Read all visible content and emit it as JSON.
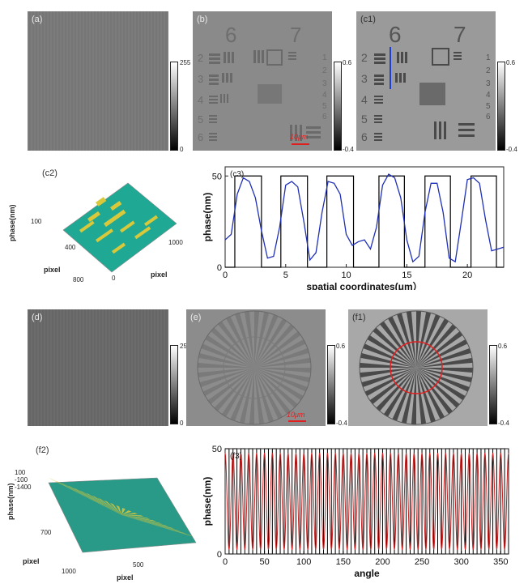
{
  "panels": {
    "a": {
      "label": "(a)"
    },
    "b": {
      "label": "(b)",
      "scalebar": "10μm"
    },
    "c1": {
      "label": "(c1)"
    },
    "c2": {
      "label": "(c2)",
      "zlabel": "phase(nm)",
      "ztick": "100",
      "ylabel": "pixel",
      "xlabel": "pixel",
      "yticks": [
        "400",
        "800"
      ],
      "xticks": [
        "1000",
        "0"
      ]
    },
    "c3": {
      "label": "(c3)"
    },
    "d": {
      "label": "(d)"
    },
    "e": {
      "label": "(e)",
      "scalebar": "10μm"
    },
    "f1": {
      "label": "(f1)"
    },
    "f2": {
      "label": "(f2)",
      "zlabel": "phase(nm)",
      "zticks": [
        "100",
        "-100",
        "-1400"
      ],
      "ytick": "700",
      "ylabel": "pixel",
      "xlabel": "pixel",
      "xticks": [
        "1000",
        "500"
      ]
    },
    "f3": {
      "label": "(f3)"
    }
  },
  "colorbars": {
    "intensity": {
      "max": "255",
      "min": "0"
    },
    "phase": {
      "max": "0.6",
      "min": "-0.4"
    }
  },
  "usaf_numbers": {
    "group6": "6",
    "group7": "7",
    "rows": [
      "2",
      "3",
      "4",
      "5",
      "6"
    ],
    "right": [
      "1",
      "2",
      "3",
      "4",
      "5",
      "6"
    ]
  },
  "colors": {
    "measured_c3": "#1f2fb5",
    "measured_f3": "#cc1f1f",
    "ideal": "#000000",
    "annotation": "#e02020"
  },
  "chart_data": [
    {
      "type": "line",
      "xlabel": "spatial coordinates(μm）",
      "ylabel": "phase(nm)",
      "xlim": [
        0,
        23
      ],
      "ylim": [
        0,
        55
      ],
      "xticks": [
        0,
        5,
        10,
        15,
        20
      ],
      "yticks": [
        0,
        50
      ],
      "grid": false,
      "series": [
        {
          "type": "step",
          "x": [
            0,
            0.8,
            0.8,
            3.0,
            3.0,
            4.6,
            4.6,
            6.8,
            6.8,
            8.4,
            8.4,
            10.6,
            10.6,
            12.7,
            12.7,
            14.8,
            14.8,
            16.5,
            16.5,
            18.6,
            18.6,
            20.3,
            20.3,
            22.4,
            22.4,
            23
          ],
          "y": [
            0,
            0,
            50,
            50,
            0,
            0,
            50,
            50,
            0,
            0,
            50,
            50,
            0,
            0,
            50,
            50,
            0,
            0,
            50,
            50,
            0,
            0,
            50,
            50,
            0,
            0
          ]
        },
        {
          "x": [
            0,
            0.5,
            1.0,
            1.5,
            2.0,
            2.5,
            3.0,
            3.5,
            4.0,
            4.5,
            5.0,
            5.5,
            6.0,
            6.5,
            7.0,
            7.5,
            8.0,
            8.5,
            9.0,
            9.5,
            10.0,
            10.5,
            11.0,
            11.5,
            12.0,
            12.5,
            13.0,
            13.5,
            14.0,
            14.5,
            15.0,
            15.5,
            16.0,
            16.5,
            17.0,
            17.5,
            18.0,
            18.5,
            19.0,
            19.5,
            20.0,
            20.5,
            21.0,
            21.5,
            22.0,
            22.5,
            23.0
          ],
          "y": [
            15,
            18,
            40,
            49,
            47,
            38,
            20,
            5,
            6,
            22,
            45,
            47,
            44,
            25,
            4,
            8,
            30,
            47,
            46,
            40,
            18,
            12,
            14,
            15,
            10,
            22,
            45,
            51,
            49,
            38,
            15,
            3,
            6,
            30,
            46,
            46,
            30,
            5,
            3,
            25,
            48,
            49,
            46,
            26,
            9,
            10,
            11
          ]
        }
      ]
    },
    {
      "type": "line",
      "xlabel": "angle",
      "ylabel": "phase(nm)",
      "xlim": [
        0,
        360
      ],
      "ylim": [
        0,
        50
      ],
      "xticks": [
        0,
        50,
        100,
        150,
        200,
        250,
        300,
        350
      ],
      "yticks": [
        0,
        50
      ],
      "grid": false,
      "series": [
        {
          "type": "square",
          "periods": 36,
          "low": 0,
          "high": 50
        },
        {
          "type": "sine",
          "periods": 36,
          "low": 2,
          "high": 48
        }
      ]
    }
  ]
}
